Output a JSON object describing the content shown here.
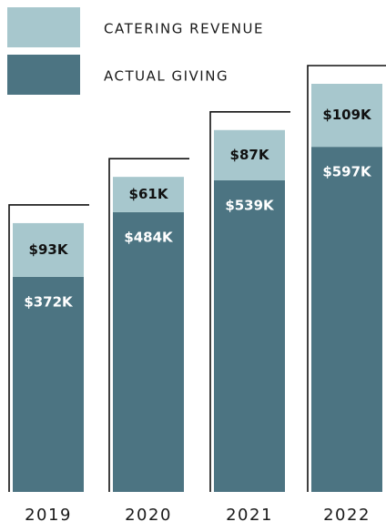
{
  "chart_data": {
    "type": "stacked_bar",
    "categories": [
      "2019",
      "2020",
      "2021",
      "2022"
    ],
    "series": [
      {
        "name": "ACTUAL GIVING",
        "color": "#4c7482",
        "values": [
          372,
          484,
          539,
          597
        ],
        "value_labels": [
          "$372K",
          "$484K",
          "$539K",
          "$597K"
        ]
      },
      {
        "name": "CATERING REVENUE",
        "color": "#a7c7cd",
        "values": [
          93,
          61,
          87,
          109
        ],
        "value_labels": [
          "$93K",
          "$61K",
          "$87K",
          "$109K"
        ]
      }
    ]
  }
}
